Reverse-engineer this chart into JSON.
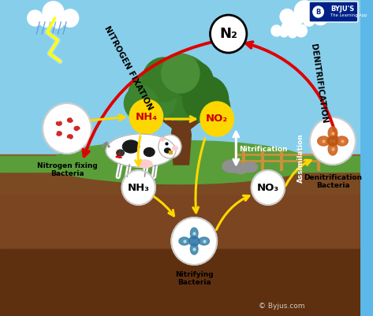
{
  "n2_label": "N₂",
  "nh4_label": "NH₄",
  "no2_label": "NO₂",
  "no3_label": "NO₃",
  "nh3_label": "NH₃",
  "nitrogen_fixation_label": "NITROGEN FIXATION",
  "denitrification_label": "DENITRIFICATION",
  "nitrification_label": "Nitrification",
  "assimilation_label": "Assimilation",
  "nfb_label": "Nitrogen fixing\nBacteria",
  "nitrifying_label": "Nitrifying\nBacteria",
  "denitrification_bacteria_label": "Denitrification\nBacteria",
  "byju_watermark": "© Byjus.com",
  "arrow_red": "#DD0000",
  "arrow_yellow": "#FFD700",
  "circle_yellow": "#FFD700",
  "text_red": "#CC0000",
  "sky_top": "#5BB8E8",
  "sky_bot": "#87CEEB",
  "grass_color": "#5A9E3A",
  "soil1": "#8B5A2B",
  "soil2": "#7A4A22",
  "soil3": "#6B3A18"
}
